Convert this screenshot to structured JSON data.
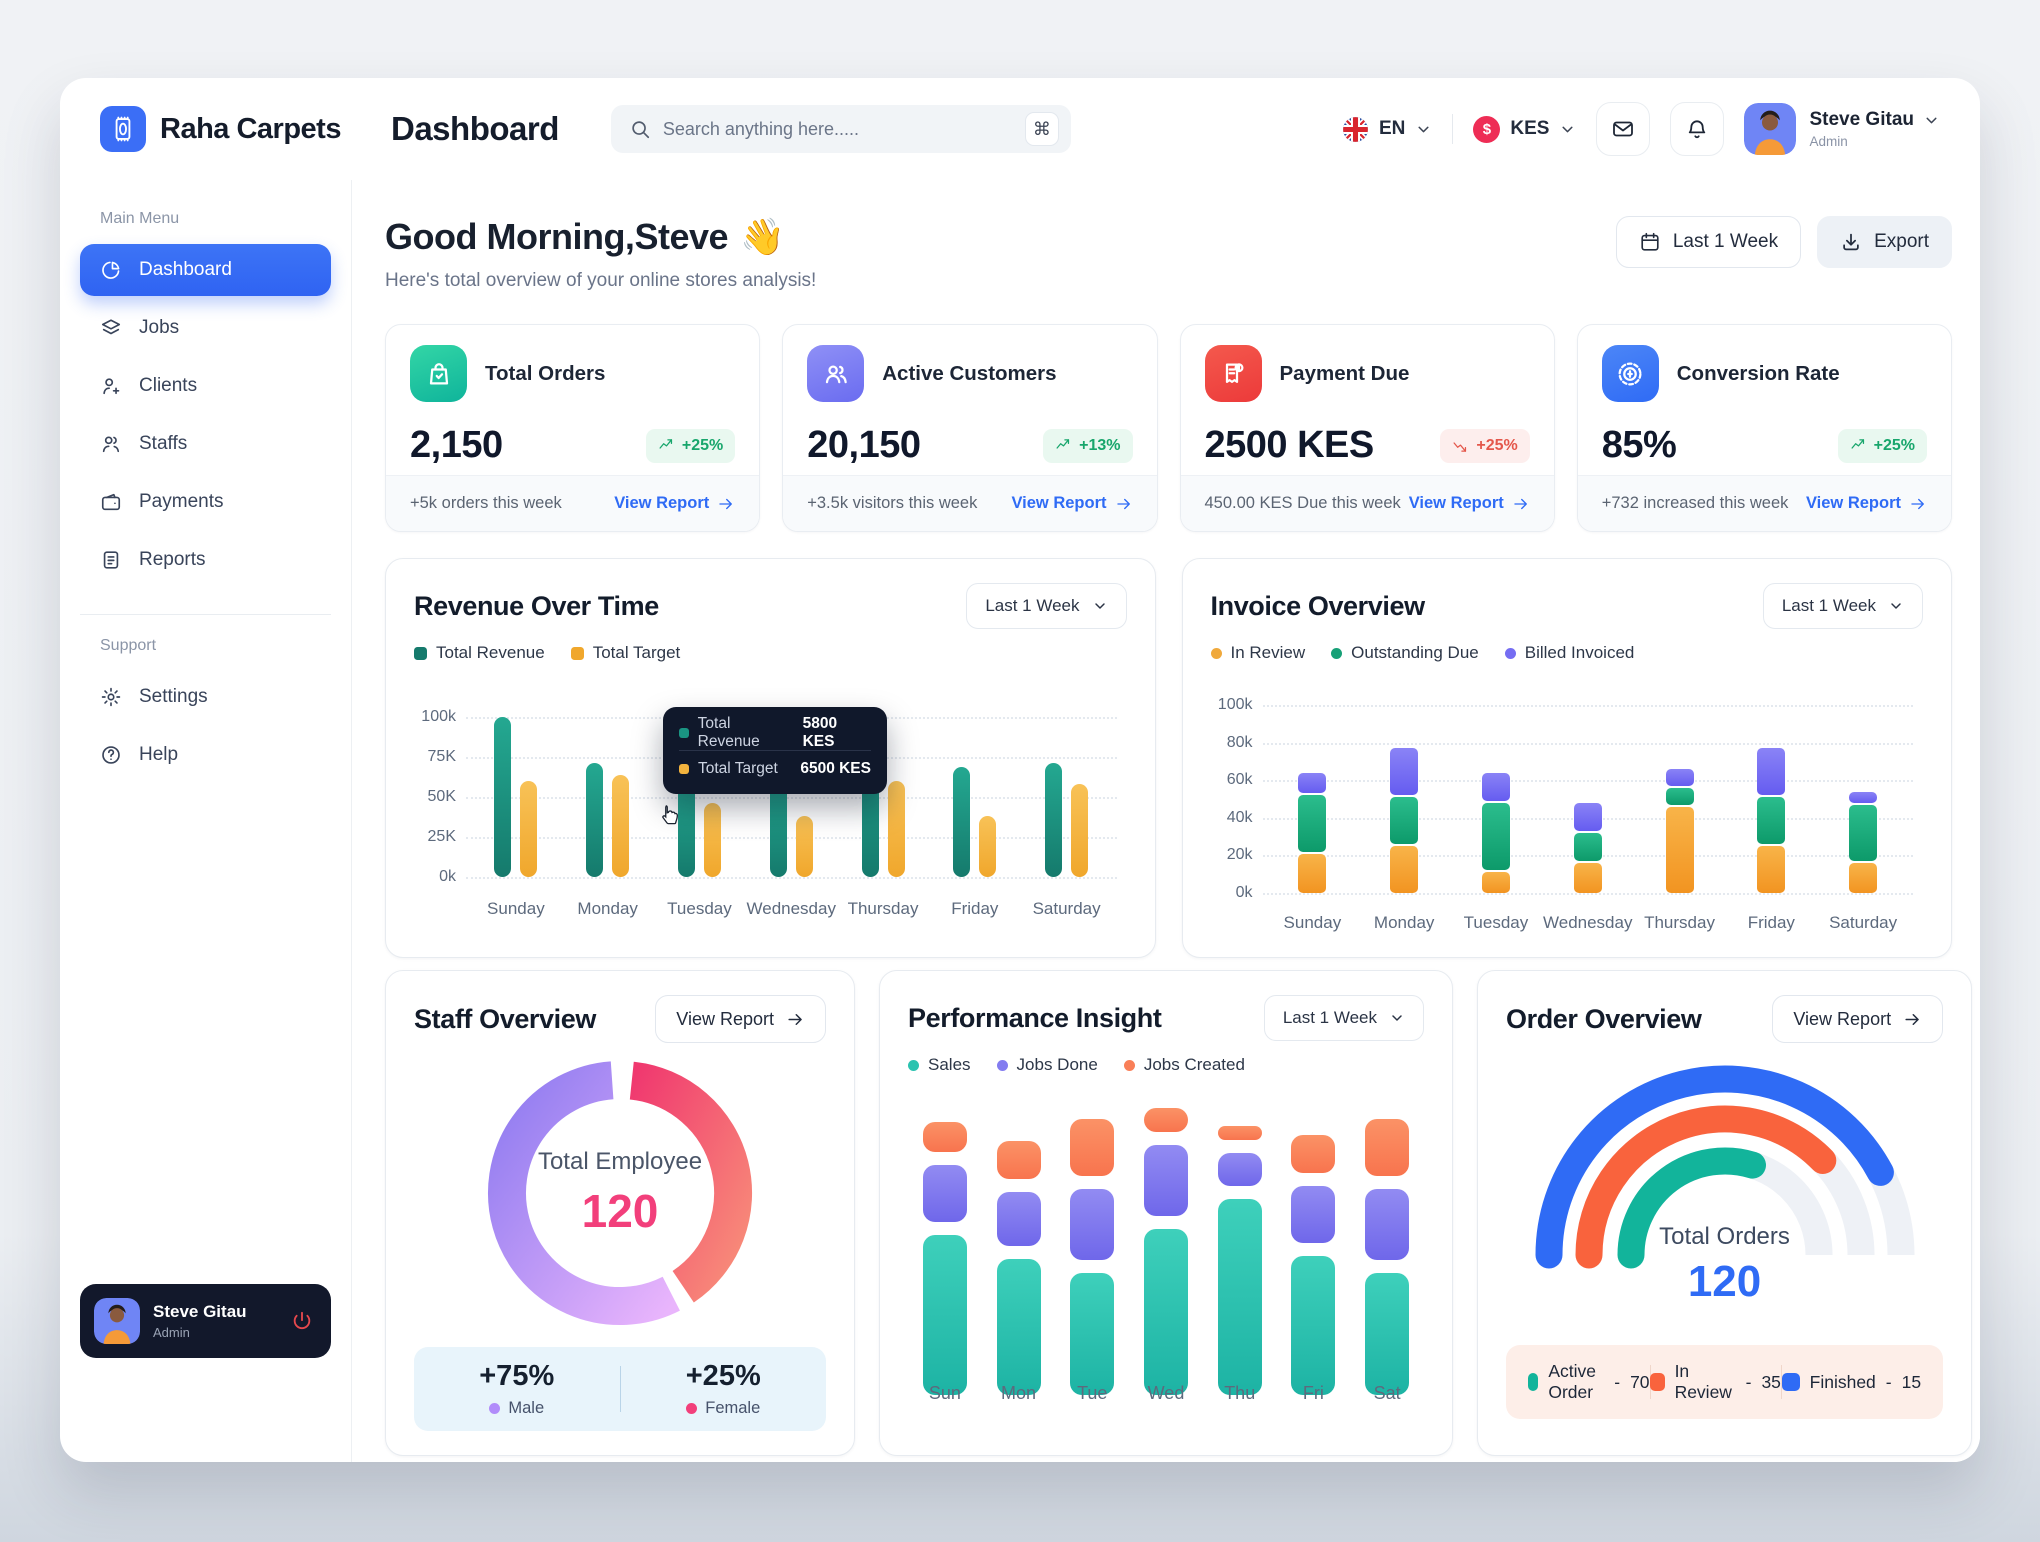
{
  "brand": {
    "name": "Raha Carpets"
  },
  "header": {
    "page_title": "Dashboard",
    "search": {
      "placeholder": "Search anything here.....",
      "shortcut": "⌘"
    },
    "language": {
      "code": "EN"
    },
    "currency": {
      "code": "KES",
      "symbol": "$"
    },
    "user": {
      "name": "Steve Gitau",
      "role": "Admin"
    }
  },
  "sidebar": {
    "main_menu_label": "Main Menu",
    "items": [
      {
        "label": "Dashboard",
        "icon": "pie",
        "active": true
      },
      {
        "label": "Jobs",
        "icon": "layers",
        "active": false
      },
      {
        "label": "Clients",
        "icon": "user-plus",
        "active": false
      },
      {
        "label": "Staffs",
        "icon": "users",
        "active": false
      },
      {
        "label": "Payments",
        "icon": "wallet",
        "active": false
      },
      {
        "label": "Reports",
        "icon": "file",
        "active": false
      }
    ],
    "support_label": "Support",
    "support_items": [
      {
        "label": "Settings",
        "icon": "gear",
        "active": false
      },
      {
        "label": "Help",
        "icon": "help",
        "active": false
      }
    ],
    "user_card": {
      "name": "Steve Gitau",
      "role": "Admin"
    }
  },
  "greeting": {
    "title": "Good Morning,Steve",
    "wave": "👋",
    "subtitle": "Here's total overview of your online stores analysis!"
  },
  "toolbar": {
    "range_label": "Last 1 Week",
    "export_label": "Export"
  },
  "stat_cards": [
    {
      "title": "Total Orders",
      "value": "2,150",
      "badge": "+25%",
      "trend": "up",
      "footer": "+5k orders this week",
      "link": "View Report",
      "icon": "bag",
      "grad_from": "#33d6a6",
      "grad_to": "#0fb49b"
    },
    {
      "title": "Active Customers",
      "value": "20,150",
      "badge": "+13%",
      "trend": "up",
      "footer": "+3.5k visitors this week",
      "link": "View Report",
      "icon": "people",
      "grad_from": "#8f90f6",
      "grad_to": "#6a6cf0"
    },
    {
      "title": "Payment Due",
      "value": "2500 KES",
      "badge": "+25%",
      "trend": "down",
      "footer": "450.00 KES Due this week",
      "link": "View Report",
      "icon": "receipt",
      "grad_from": "#f4594d",
      "grad_to": "#ec3a3a"
    },
    {
      "title": "Conversion Rate",
      "value": "85%",
      "badge": "+25%",
      "trend": "up",
      "footer": "+732 increased this week",
      "link": "View Report",
      "icon": "badge-dollar",
      "grad_from": "#4c86f7",
      "grad_to": "#2f6bf5"
    }
  ],
  "chart_data": [
    {
      "id": "revenue_over_time",
      "type": "bar",
      "title": "Revenue Over Time",
      "range_label": "Last 1 Week",
      "categories": [
        "Sunday",
        "Monday",
        "Tuesday",
        "Wednesday",
        "Thursday",
        "Friday",
        "Saturday"
      ],
      "series": [
        {
          "name": "Total Revenue",
          "color_from": "#24a891",
          "color_to": "#157a6c",
          "values": [
            100,
            71,
            58,
            62,
            93,
            69,
            71
          ]
        },
        {
          "name": "Total Target",
          "color_from": "#f8c257",
          "color_to": "#f0a72c",
          "values": [
            60,
            64,
            46,
            38,
            60,
            38,
            58
          ]
        }
      ],
      "xlabel": "",
      "ylabel": "",
      "ylim": [
        0,
        100
      ],
      "grid": true,
      "legend_position": "top-left",
      "y_ticks": [
        "100k",
        "75K",
        "50K",
        "25K",
        "0k"
      ],
      "tooltip": {
        "rows": [
          {
            "label": "Total Revenue",
            "value": "5800 KES",
            "color": "#1a9482"
          },
          {
            "label": "Total Target",
            "value": "6500 KES",
            "color": "#f3b33e"
          }
        ]
      }
    },
    {
      "id": "invoice_overview",
      "type": "stacked-bar",
      "title": "Invoice Overview",
      "range_label": "Last 1 Week",
      "categories": [
        "Sunday",
        "Monday",
        "Tuesday",
        "Wednesday",
        "Thursday",
        "Friday",
        "Saturday"
      ],
      "series": [
        {
          "name": "In Review",
          "color_from": "#f8b449",
          "color_to": "#f29421",
          "values": [
            22,
            26,
            12,
            17,
            47,
            26,
            17
          ]
        },
        {
          "name": "Outstanding Due",
          "color_from": "#2bbd8d",
          "color_to": "#0d9a6a",
          "values": [
            31,
            26,
            37,
            16,
            10,
            26,
            31
          ]
        },
        {
          "name": "Billed Invoiced",
          "color_from": "#8a83f6",
          "color_to": "#655cf0",
          "values": [
            12,
            26,
            16,
            16,
            10,
            26,
            7
          ]
        }
      ],
      "legend_colors": [
        "#f0a93c",
        "#17a077",
        "#756df2"
      ],
      "xlabel": "",
      "ylabel": "",
      "ylim": [
        0,
        100
      ],
      "grid": true,
      "legend_position": "top-left",
      "y_ticks": [
        "100k",
        "80k",
        "60k",
        "40k",
        "20k",
        "0k"
      ]
    },
    {
      "id": "staff_overview",
      "type": "pie",
      "title": "Staff Overview",
      "action_label": "View Report",
      "center_label": "Total Employee",
      "center_value": "120",
      "slices": [
        {
          "label": "Male",
          "value_label": "+75%",
          "pct": 75,
          "color_from": "#8f7bf0",
          "color_to": "#e9b5fc",
          "dot": "#b18cfa"
        },
        {
          "label": "Female",
          "value_label": "+25%",
          "pct": 25,
          "color_from": "#f0386f",
          "color_to": "#f88d79",
          "dot": "#f23f7b"
        }
      ],
      "display_sweeps_deg": [
        203,
        140
      ]
    },
    {
      "id": "performance_insight",
      "type": "stacked-bar",
      "title": "Performance Insight",
      "range_label": "Last 1 Week",
      "categories": [
        "Sun",
        "Mon",
        "Tue",
        "Wed",
        "Thu",
        "Fri",
        "Sat"
      ],
      "series": [
        {
          "name": "Sales",
          "color_from": "#3ed0bb",
          "color_to": "#1db3a4",
          "values": [
            59,
            50,
            45,
            61,
            72,
            51,
            45
          ]
        },
        {
          "name": "Jobs Done",
          "color_from": "#928bf2",
          "color_to": "#6f67ea",
          "values": [
            21,
            20,
            26,
            26,
            12,
            21,
            26
          ]
        },
        {
          "name": "Jobs Created",
          "color_from": "#fb9266",
          "color_to": "#f8744e",
          "values": [
            11,
            14,
            21,
            9,
            5,
            14,
            21
          ]
        }
      ],
      "legend_colors": [
        "#2cc3b0",
        "#837cf0",
        "#f97f58"
      ],
      "xlabel": "",
      "ylabel": "",
      "ylim": [
        0,
        100
      ],
      "grid": false,
      "legend_position": "top-left"
    },
    {
      "id": "order_overview",
      "type": "gauge",
      "title": "Order Overview",
      "action_label": "View Report",
      "center_label": "Total Orders",
      "center_value": "120",
      "separator": "-",
      "segments": [
        {
          "label": "Active Order",
          "value": "70",
          "color": "#12b49b",
          "sweep_deg": 107,
          "radius": 94
        },
        {
          "label": "In Review",
          "value": "35",
          "color": "#f9633d",
          "sweep_deg": 136,
          "radius": 136
        },
        {
          "label": "Finished",
          "value": "15",
          "color": "#2f6bf5",
          "sweep_deg": 152,
          "radius": 176
        }
      ]
    }
  ]
}
